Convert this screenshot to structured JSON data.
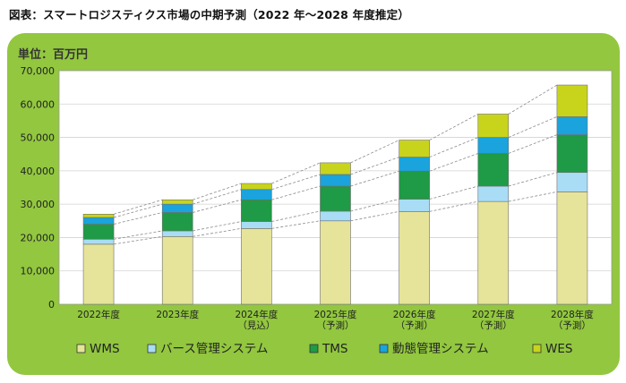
{
  "figure_title": "図表：スマートロジスティクス市場の中期予測（2022 年～2028 年度推定）",
  "unit_label": "単位：百万円",
  "chart_data": {
    "type": "bar",
    "stacked": true,
    "categories": [
      "2022年度",
      "2023年度",
      "2024年度\n（見込）",
      "2025年度\n（予測）",
      "2026年度\n（予測）",
      "2027年度\n（予測）",
      "2028年度\n（予測）"
    ],
    "series": [
      {
        "name": "WMS",
        "color": "#e6e49a",
        "values": [
          18000,
          20300,
          22700,
          25000,
          27800,
          30800,
          33700
        ]
      },
      {
        "name": "バース管理システム",
        "color": "#a9dcf5",
        "values": [
          1500,
          1700,
          2100,
          2900,
          3700,
          4600,
          5800
        ]
      },
      {
        "name": "TMS",
        "color": "#1f9a46",
        "values": [
          4500,
          5500,
          6500,
          7500,
          8400,
          9800,
          11300
        ]
      },
      {
        "name": "動態管理システム",
        "color": "#1aa3dc",
        "values": [
          2000,
          2500,
          3100,
          3500,
          4200,
          4800,
          5400
        ]
      },
      {
        "name": "WES",
        "color": "#c8d41c",
        "values": [
          1000,
          1300,
          1800,
          3500,
          5100,
          7000,
          9500
        ]
      }
    ],
    "ylim": [
      0,
      70000
    ],
    "yticks": [
      0,
      10000,
      20000,
      30000,
      40000,
      50000,
      60000,
      70000
    ],
    "ytick_labels": [
      "0",
      "10,000",
      "20,000",
      "30,000",
      "40,000",
      "50,000",
      "60,000",
      "70,000"
    ],
    "grid": true,
    "legend_position": "bottom"
  }
}
